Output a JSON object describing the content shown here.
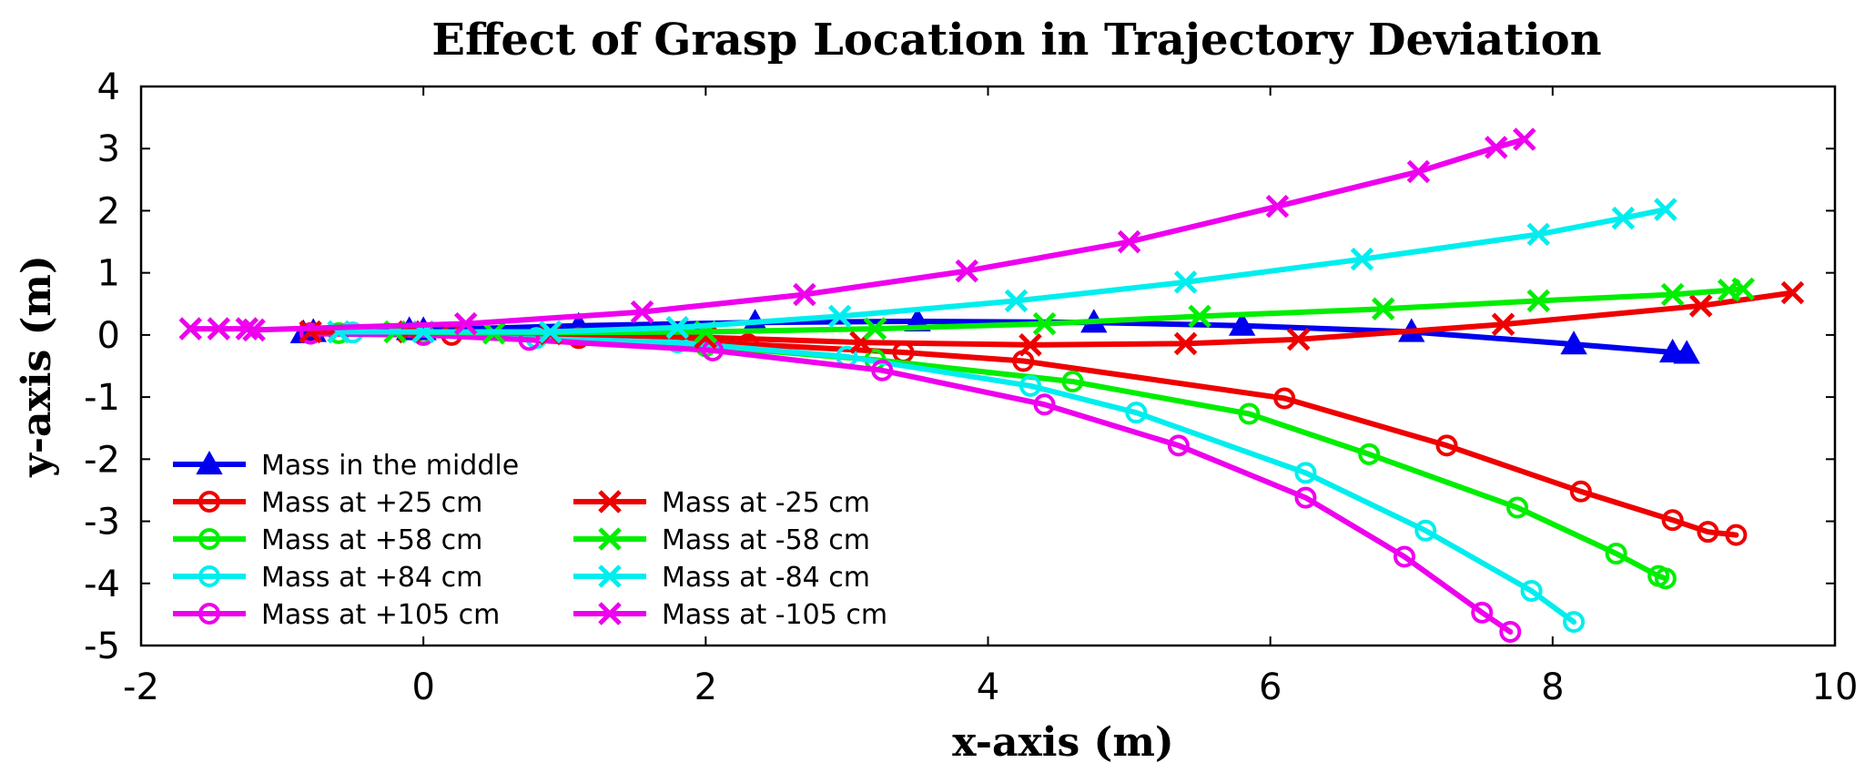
{
  "chart_data": {
    "type": "line",
    "title": "Effect of Grasp Location in Trajectory Deviation",
    "xlabel": "x-axis (m)",
    "ylabel": "y-axis (m)",
    "xlim": [
      -2,
      10
    ],
    "ylim": [
      -5,
      4
    ],
    "xticks": [
      -2,
      0,
      2,
      4,
      6,
      8,
      10
    ],
    "yticks": [
      -5,
      -4,
      -3,
      -2,
      -1,
      0,
      1,
      2,
      3,
      4
    ],
    "xtick_labels": [
      "-2",
      "0",
      "2",
      "4",
      "6",
      "8",
      "10"
    ],
    "ytick_labels": [
      "-5",
      "-4",
      "-3",
      "-2",
      "-1",
      "0",
      "1",
      "2",
      "3",
      "4"
    ],
    "grid": false,
    "legend_position": "bottom-left",
    "series": [
      {
        "name": "Mass in the middle",
        "color": "#0000ee",
        "marker": "triangle",
        "x": [
          -0.85,
          -0.78,
          -0.1,
          0.0,
          1.1,
          2.35,
          3.5,
          4.75,
          5.8,
          7.0,
          8.15,
          8.85,
          8.95
        ],
        "y": [
          0.03,
          0.05,
          0.08,
          0.08,
          0.15,
          0.2,
          0.22,
          0.2,
          0.15,
          0.05,
          -0.15,
          -0.28,
          -0.3
        ]
      },
      {
        "name": "Mass at +25 cm",
        "color": "#ee0000",
        "marker": "circle",
        "x": [
          -0.8,
          0.2,
          1.1,
          2.3,
          3.4,
          4.25,
          6.1,
          7.25,
          8.2,
          8.85,
          9.1,
          9.3
        ],
        "y": [
          0.03,
          0.0,
          -0.05,
          -0.15,
          -0.28,
          -0.42,
          -1.02,
          -1.78,
          -2.52,
          -2.98,
          -3.17,
          -3.22
        ]
      },
      {
        "name": "Mass at +58 cm",
        "color": "#00ee00",
        "marker": "circle",
        "x": [
          -0.6,
          0.0,
          0.8,
          2.0,
          3.2,
          4.6,
          5.85,
          6.7,
          7.75,
          8.45,
          8.75,
          8.8
        ],
        "y": [
          0.03,
          0.02,
          -0.05,
          -0.18,
          -0.4,
          -0.75,
          -1.27,
          -1.92,
          -2.78,
          -3.52,
          -3.88,
          -3.92
        ]
      },
      {
        "name": "Mass at +84 cm",
        "color": "#00eeee",
        "marker": "circle",
        "x": [
          -0.5,
          0.0,
          0.8,
          1.8,
          3.0,
          4.3,
          5.05,
          6.25,
          7.1,
          7.85,
          8.15
        ],
        "y": [
          0.04,
          0.0,
          -0.05,
          -0.12,
          -0.35,
          -0.82,
          -1.25,
          -2.22,
          -3.15,
          -4.12,
          -4.62
        ]
      },
      {
        "name": "Mass at +105 cm",
        "color": "#ee00ee",
        "marker": "circle",
        "x": [
          -0.8,
          0.0,
          0.75,
          2.05,
          3.25,
          4.4,
          5.35,
          6.25,
          6.95,
          7.5,
          7.7
        ],
        "y": [
          0.02,
          0.0,
          -0.08,
          -0.25,
          -0.57,
          -1.12,
          -1.78,
          -2.62,
          -3.57,
          -4.47,
          -4.78
        ]
      },
      {
        "name": "Mass at -25 cm",
        "color": "#ee0000",
        "marker": "x",
        "x": [
          -0.8,
          -0.1,
          0.9,
          2.0,
          3.1,
          4.3,
          5.4,
          6.2,
          7.65,
          9.05,
          9.7
        ],
        "y": [
          0.05,
          0.05,
          0.02,
          -0.04,
          -0.12,
          -0.16,
          -0.14,
          -0.07,
          0.17,
          0.47,
          0.68
        ]
      },
      {
        "name": "Mass at -58 cm",
        "color": "#00ee00",
        "marker": "x",
        "x": [
          -0.6,
          -0.2,
          0.5,
          2.0,
          3.2,
          4.4,
          5.5,
          6.8,
          7.9,
          8.85,
          9.25,
          9.35
        ],
        "y": [
          0.05,
          0.05,
          0.03,
          0.05,
          0.1,
          0.18,
          0.3,
          0.42,
          0.55,
          0.65,
          0.72,
          0.74
        ]
      },
      {
        "name": "Mass at -84 cm",
        "color": "#00eeee",
        "marker": "x",
        "x": [
          -0.6,
          0.0,
          0.9,
          1.8,
          2.95,
          4.2,
          5.4,
          6.65,
          7.9,
          8.5,
          8.8
        ],
        "y": [
          0.05,
          0.05,
          0.05,
          0.12,
          0.3,
          0.55,
          0.85,
          1.22,
          1.62,
          1.88,
          2.02
        ]
      },
      {
        "name": "Mass at -105 cm",
        "color": "#ee00ee",
        "marker": "x",
        "x": [
          -1.65,
          -1.45,
          -1.25,
          -1.2,
          0.3,
          1.55,
          2.7,
          3.85,
          5.0,
          6.05,
          7.05,
          7.6,
          7.8
        ],
        "y": [
          0.1,
          0.1,
          0.1,
          0.08,
          0.18,
          0.37,
          0.65,
          1.03,
          1.5,
          2.07,
          2.63,
          3.02,
          3.15
        ]
      }
    ]
  }
}
